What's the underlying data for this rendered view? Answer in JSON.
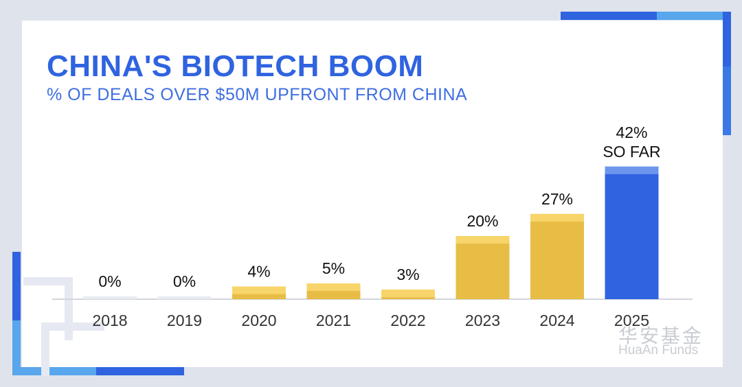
{
  "title": "CHINA'S BIOTECH BOOM",
  "subtitle": "% OF DEALS OVER $50M UPFRONT FROM CHINA",
  "watermark": {
    "cn": "华安基金",
    "en": "HuaAn Funds"
  },
  "colors": {
    "title": "#2f63e0",
    "bar_yellow": "#e8bd45",
    "bar_yellow_light": "#f8d56a",
    "bar_blue": "#2f63e0",
    "bar_blue_cap": "#6c95ec",
    "bar_zero": "#e8ebf2",
    "axis": "#d2d5dc"
  },
  "chart_data": {
    "type": "bar",
    "title": "CHINA'S BIOTECH BOOM",
    "subtitle": "% OF DEALS OVER $50M UPFRONT FROM CHINA",
    "categories": [
      "2018",
      "2019",
      "2020",
      "2021",
      "2022",
      "2023",
      "2024",
      "2025"
    ],
    "values": [
      0,
      0,
      4,
      5,
      3,
      20,
      27,
      42
    ],
    "data_labels": [
      "0%",
      "0%",
      "4%",
      "5%",
      "3%",
      "20%",
      "27%",
      "42%"
    ],
    "extra_labels": [
      null,
      null,
      null,
      null,
      null,
      null,
      null,
      "SO FAR"
    ],
    "highlight_index": 7,
    "unit": "%",
    "ylim": [
      0,
      45
    ],
    "grid": false,
    "legend": "none"
  }
}
